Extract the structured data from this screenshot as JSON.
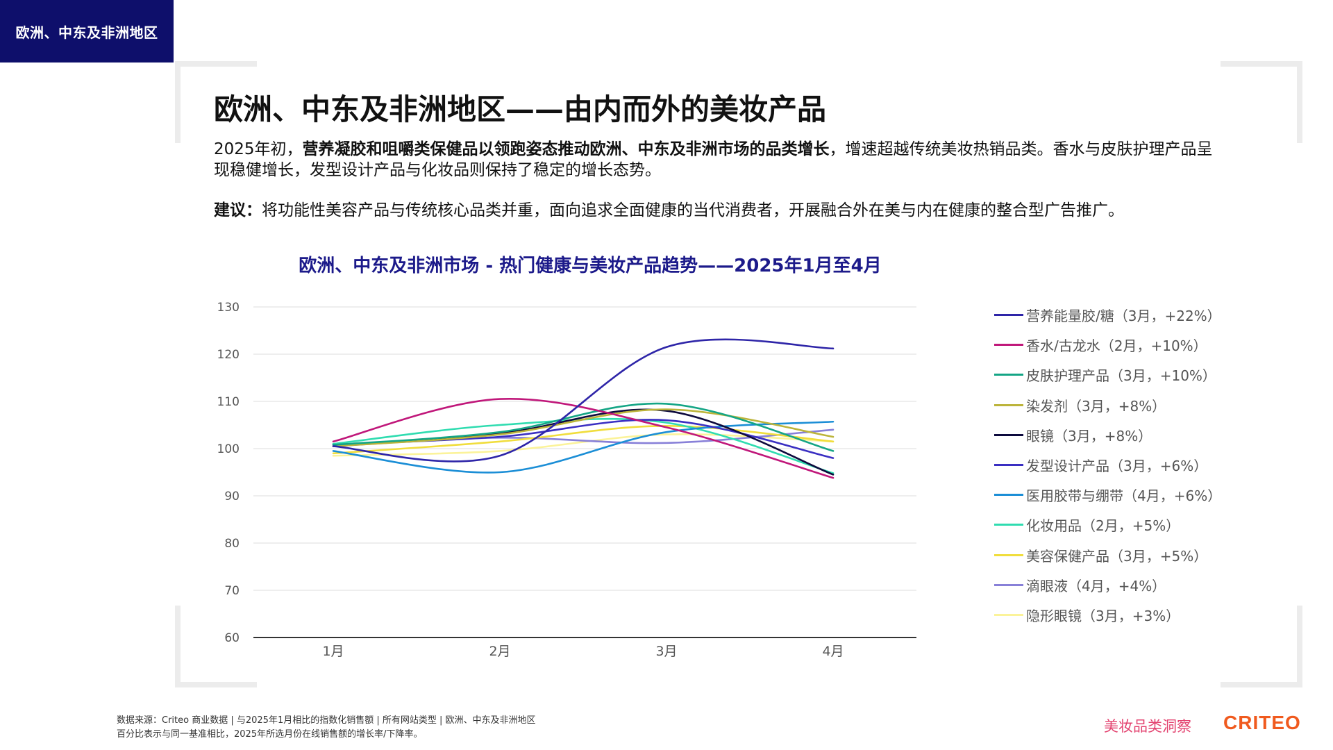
{
  "header": {
    "region_tag": "欧洲、中东及非洲地区"
  },
  "page_title": "欧洲、中东及非洲地区——由内而外的美妆产品",
  "intro": {
    "prefix": "2025年初，",
    "highlight": "营养凝胶和咀嚼类保健品以领跑姿态推动欧洲、中东及非洲市场的品类增长",
    "suffix": "，增速超越传统美妆热销品类。香水与皮肤护理产品呈现稳健增长，发型设计产品与化妆品则保持了稳定的增长态势。"
  },
  "advice": {
    "label": "建议：",
    "text": "将功能性美容产品与传统核心品类并重，面向追求全面健康的当代消费者，开展融合外在美与内在健康的整合型广告推广。"
  },
  "chart_data": {
    "type": "line",
    "title": "欧洲、中东及非洲市场 - 热门健康与美妆产品趋势——2025年1月至4月",
    "categories": [
      "1月",
      "2月",
      "3月",
      "4月"
    ],
    "ylim": [
      60,
      130
    ],
    "yticks": [
      60,
      70,
      80,
      90,
      100,
      110,
      120,
      130
    ],
    "grid": true,
    "legend_position": "right",
    "series": [
      {
        "name": "营养能量胶/糖（3月，+22%）",
        "color": "#2e25a8",
        "values": [
          100.5,
          98.5,
          121.5,
          121.2
        ]
      },
      {
        "name": "香水/古龙水（2月，+10%）",
        "color": "#c0177a",
        "values": [
          101.5,
          110.5,
          104.5,
          93.8
        ]
      },
      {
        "name": "皮肤护理产品（3月，+10%）",
        "color": "#14a585",
        "values": [
          100.8,
          103.5,
          109.5,
          99.5
        ]
      },
      {
        "name": "染发剂（3月，+8%）",
        "color": "#bcb43a",
        "values": [
          100.5,
          103,
          108.3,
          102.5
        ]
      },
      {
        "name": "眼镜（3月，+8%）",
        "color": "#0d0a3d",
        "values": [
          100.5,
          103.2,
          108,
          94.5
        ]
      },
      {
        "name": "发型设计产品（3月，+6%）",
        "color": "#3a2fc2",
        "values": [
          100.8,
          102.5,
          106,
          98
        ]
      },
      {
        "name": "医用胶带与绷带（4月，+6%）",
        "color": "#1b8ed6",
        "values": [
          99.5,
          95,
          103.5,
          105.7
        ]
      },
      {
        "name": "化妆用品（2月，+5%）",
        "color": "#2fdcb0",
        "values": [
          101,
          105,
          105.5,
          94.8
        ]
      },
      {
        "name": "美容保健产品（3月，+5%）",
        "color": "#f0dd3c",
        "values": [
          99,
          101.5,
          104.8,
          101.5
        ]
      },
      {
        "name": "滴眼液（4月，+4%）",
        "color": "#8880d8",
        "values": [
          100.5,
          102.3,
          101.2,
          104
        ]
      },
      {
        "name": "隐形眼镜（3月，+3%）",
        "color": "#fbf39a",
        "values": [
          98.5,
          99.5,
          103,
          101.5
        ]
      }
    ]
  },
  "footer": {
    "source": "数据来源：Criteo 商业数据 | 与2025年1月相比的指数化销售额 | 所有网站类型 | 欧洲、中东及非洲地区",
    "note": "百分比表示与同一基准相比，2025年所选月份在线销售额的增长率/下降率。"
  },
  "brand": {
    "label": "美妆品类洞察",
    "logo": "CRITEO"
  }
}
